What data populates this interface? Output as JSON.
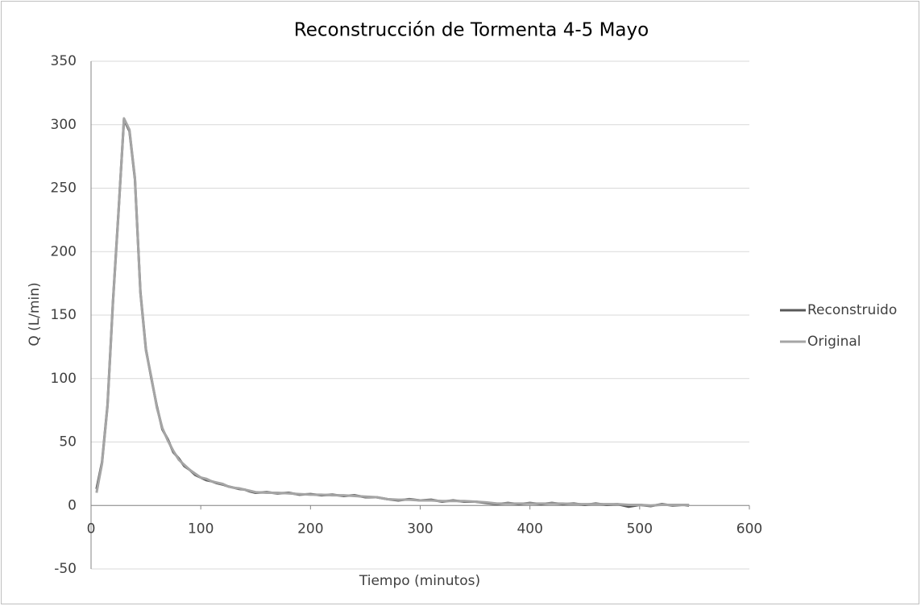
{
  "chart_data": {
    "type": "line",
    "title": "Reconstrucción de Tormenta 4-5 Mayo",
    "x_label": "Tiempo (minutos)",
    "y_label": "Q (L/min)",
    "x": [
      5,
      10,
      15,
      20,
      25,
      30,
      35,
      40,
      45,
      50,
      55,
      60,
      65,
      70,
      75,
      80,
      85,
      90,
      95,
      100,
      105,
      110,
      115,
      120,
      125,
      130,
      135,
      140,
      145,
      150,
      160,
      170,
      180,
      190,
      200,
      210,
      220,
      230,
      240,
      250,
      260,
      270,
      280,
      290,
      300,
      310,
      320,
      330,
      340,
      350,
      360,
      370,
      380,
      390,
      400,
      410,
      420,
      430,
      440,
      450,
      460,
      470,
      480,
      490,
      500,
      510,
      520,
      530,
      540,
      545
    ],
    "series": [
      {
        "name": "Reconstruido",
        "color": "#595959",
        "values": [
          13,
          34,
          79,
          161,
          231,
          304,
          295,
          257,
          168,
          123,
          100,
          78,
          60,
          52,
          42,
          37,
          31,
          28,
          24,
          22,
          20,
          19,
          17.5,
          16.5,
          15,
          14,
          13,
          12.5,
          11,
          10,
          10.5,
          9.5,
          10,
          8.5,
          9,
          8,
          8.5,
          7.5,
          8,
          6.5,
          6.5,
          5,
          4,
          5,
          4,
          4.5,
          3,
          4,
          3,
          3,
          2,
          1,
          2,
          1,
          2,
          1,
          2,
          1,
          1.5,
          0.5,
          1.5,
          0.5,
          1,
          -1,
          0.5,
          -0.5,
          1,
          0,
          0.5,
          0
        ]
      },
      {
        "name": "Original",
        "color": "#a5a5a5",
        "values": [
          10,
          33,
          78,
          160,
          230,
          305,
          296,
          258,
          167,
          122,
          101,
          77,
          61,
          51,
          43,
          36,
          32,
          28,
          25,
          22,
          21,
          19,
          18,
          17,
          15,
          14,
          13.5,
          12.5,
          11.5,
          10.5,
          10,
          10,
          9.5,
          9,
          8.5,
          8.5,
          8,
          8,
          7.5,
          7,
          6.5,
          5,
          4.5,
          4.5,
          4,
          4,
          3.5,
          3.5,
          3.5,
          3,
          2.5,
          1.5,
          1.5,
          1.5,
          1.5,
          1.5,
          1.5,
          1.5,
          1,
          1,
          1,
          1,
          1,
          0.5,
          0.5,
          0,
          0.5,
          0.5,
          0.5,
          0.5
        ]
      }
    ],
    "xlim": [
      0,
      600
    ],
    "xticks": [
      0,
      100,
      200,
      300,
      400,
      500,
      600
    ],
    "ylim": [
      -50,
      350
    ],
    "yticks": [
      -50,
      0,
      50,
      100,
      150,
      200,
      250,
      300,
      350
    ],
    "grid": true,
    "legend": "right"
  }
}
